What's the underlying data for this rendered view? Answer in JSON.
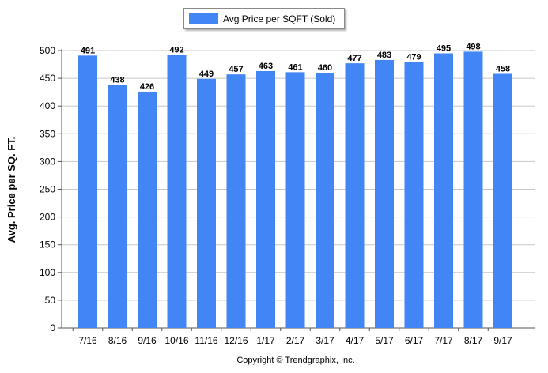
{
  "chart_data": {
    "type": "bar",
    "title": "",
    "xlabel": "",
    "ylabel": "Avg. Price per SQ. FT.",
    "categories": [
      "7/16",
      "8/16",
      "9/16",
      "10/16",
      "11/16",
      "12/16",
      "1/17",
      "2/17",
      "3/17",
      "4/17",
      "5/17",
      "6/17",
      "7/17",
      "8/17",
      "9/17"
    ],
    "series": [
      {
        "name": "Avg Price per SQFT (Sold)",
        "values": [
          491,
          438,
          426,
          492,
          449,
          457,
          463,
          461,
          460,
          477,
          483,
          479,
          495,
          498,
          458
        ],
        "color": "#4285f4"
      }
    ],
    "ylim": [
      0,
      500
    ],
    "yticks": [
      0,
      50,
      100,
      150,
      200,
      250,
      300,
      350,
      400,
      450,
      500
    ],
    "grid": true,
    "legend_position": "top-center",
    "data_labels": true
  },
  "footer": {
    "copyright": "Copyright © Trendgraphix, Inc."
  }
}
